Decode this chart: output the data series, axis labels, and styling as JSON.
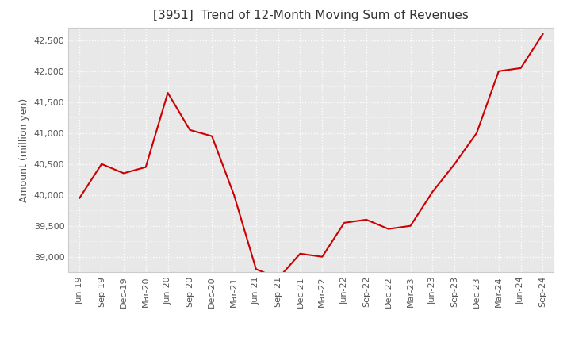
{
  "title": "[3951]  Trend of 12-Month Moving Sum of Revenues",
  "ylabel": "Amount (million yen)",
  "line_color": "#cc0000",
  "background_color": "#ffffff",
  "plot_bg_color": "#e8e8e8",
  "grid_color": "#ffffff",
  "x_labels": [
    "Jun-19",
    "Sep-19",
    "Dec-19",
    "Mar-20",
    "Jun-20",
    "Sep-20",
    "Dec-20",
    "Mar-21",
    "Jun-21",
    "Sep-21",
    "Dec-21",
    "Mar-22",
    "Jun-22",
    "Sep-22",
    "Dec-22",
    "Mar-23",
    "Jun-23",
    "Sep-23",
    "Dec-23",
    "Mar-24",
    "Jun-24",
    "Sep-24"
  ],
  "values": [
    39950,
    40500,
    40350,
    40450,
    41650,
    41050,
    40950,
    40000,
    38800,
    38650,
    39050,
    39000,
    39550,
    39600,
    39450,
    39500,
    40050,
    40500,
    41000,
    42000,
    42050,
    42600
  ],
  "ylim": [
    38750,
    42700
  ],
  "yticks": [
    39000,
    39500,
    40000,
    40500,
    41000,
    41500,
    42000,
    42500
  ],
  "title_fontsize": 11,
  "ylabel_fontsize": 9,
  "tick_fontsize": 8
}
